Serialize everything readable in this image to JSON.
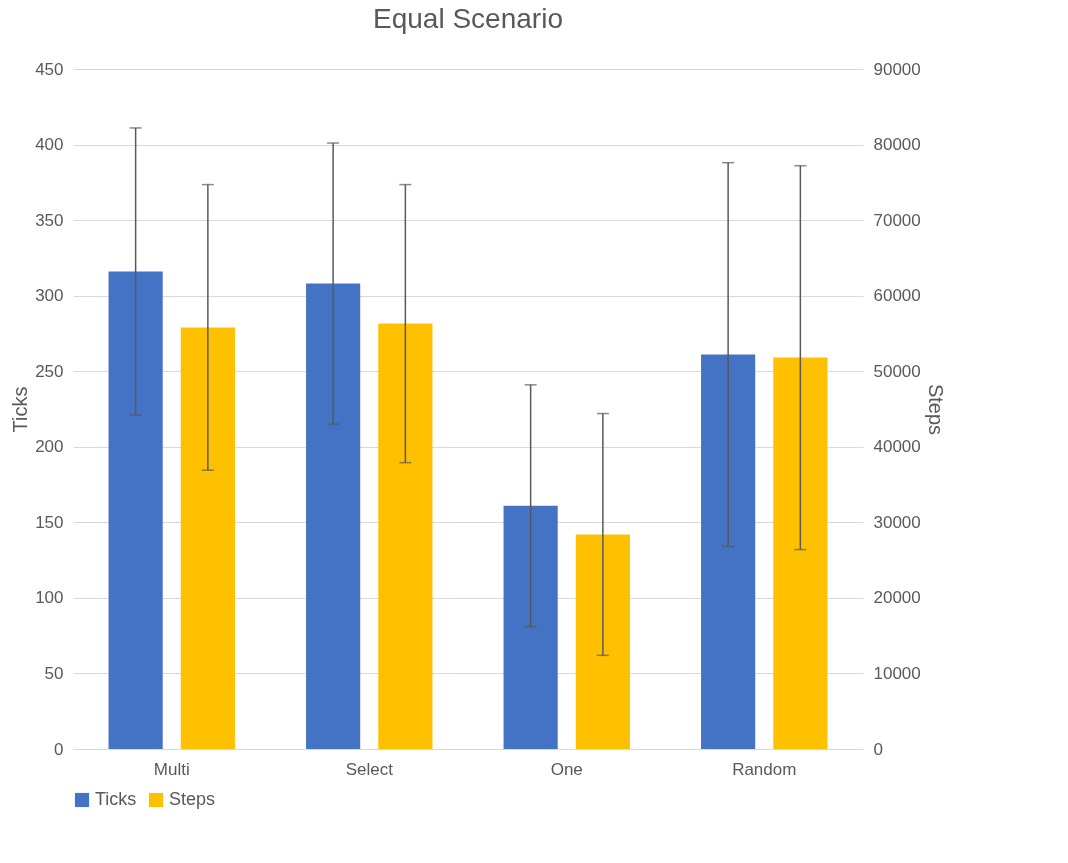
{
  "chart_data": {
    "type": "bar",
    "title": "Equal Scenario",
    "ylabel": "Ticks",
    "y2label": "Steps",
    "categories": [
      "Multi",
      "Select",
      "One",
      "Random"
    ],
    "series": [
      {
        "name": "Ticks",
        "color": "#4472c4",
        "values": [
          316,
          308,
          161,
          261
        ],
        "errors": [
          95,
          93,
          80,
          127
        ]
      },
      {
        "name": "Steps",
        "color": "#ffc000",
        "axis": "y2",
        "values": [
          55800,
          56300,
          28400,
          51800
        ],
        "errors": [
          18900,
          18400,
          16000,
          25400
        ]
      }
    ],
    "ylim": [
      0,
      450
    ],
    "yticks": [
      0,
      50,
      100,
      150,
      200,
      250,
      300,
      350,
      400,
      450
    ],
    "y2lim": [
      0,
      90000
    ],
    "y2ticks": [
      0,
      10000,
      20000,
      30000,
      40000,
      50000,
      60000,
      70000,
      80000,
      90000
    ],
    "grid": "y",
    "legend": "bottom"
  }
}
